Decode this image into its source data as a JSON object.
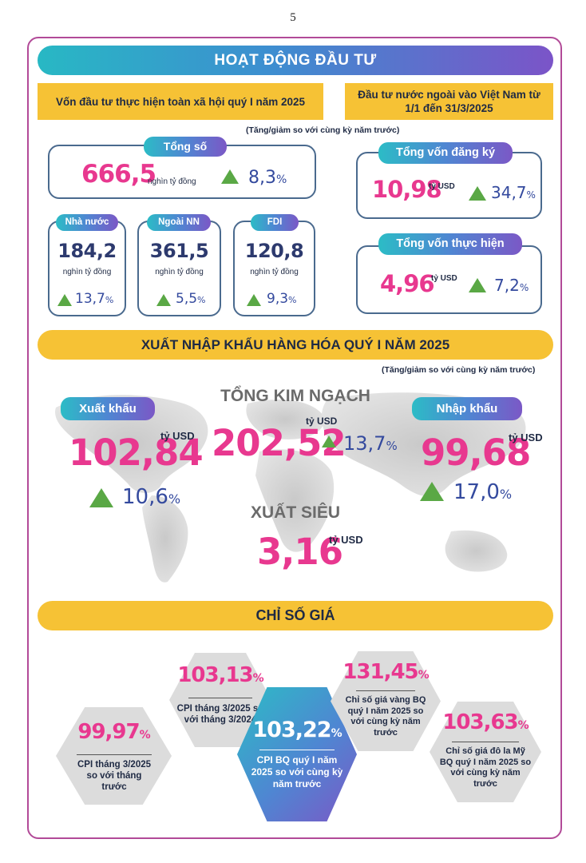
{
  "page_number": "5",
  "investment": {
    "title": "HOẠT ĐỘNG ĐẦU TƯ",
    "left_header": "Vốn đầu tư thực hiện toàn xã hội quý I năm 2025",
    "right_header": "Đầu tư nước ngoài vào Việt Nam từ 1/1 đến 31/3/2025",
    "note": "(Tăng/giảm so với cùng kỳ năm trước)",
    "total": {
      "label": "Tổng số",
      "value": "666,5",
      "unit": "nghìn tỷ đồng",
      "change": "8,3",
      "pct": "%"
    },
    "state": {
      "label": "Nhà nước",
      "value": "184,2",
      "unit": "nghìn tỷ đồng",
      "change": "13,7",
      "pct": "%"
    },
    "nonstate": {
      "label": "Ngoài NN",
      "value": "361,5",
      "unit": "nghìn tỷ đồng",
      "change": "5,5",
      "pct": "%"
    },
    "fdi": {
      "label": "FDI",
      "value": "120,8",
      "unit": "nghìn tỷ đồng",
      "change": "9,3",
      "pct": "%"
    },
    "registered": {
      "label": "Tổng vốn đăng ký",
      "value": "10,98",
      "unit": "tỷ USD",
      "change": "34,7",
      "pct": "%"
    },
    "disbursed": {
      "label": "Tổng vốn thực hiện",
      "value": "4,96",
      "unit": "tỷ USD",
      "change": "7,2",
      "pct": "%"
    }
  },
  "trade": {
    "title": "XUẤT NHẬP KHẨU HÀNG HÓA QUÝ I NĂM 2025",
    "note": "(Tăng/giảm so với cùng kỳ năm trước)",
    "export": {
      "label": "Xuất khẩu",
      "value": "102,84",
      "unit": "tỷ USD",
      "change": "10,6",
      "pct": "%"
    },
    "total": {
      "label": "TỔNG KIM NGẠCH",
      "value": "202,52",
      "unit": "tỷ USD",
      "change": "13,7",
      "pct": "%"
    },
    "import": {
      "label": "Nhập khẩu",
      "value": "99,68",
      "unit": "tỷ USD",
      "change": "17,0",
      "pct": "%"
    },
    "surplus": {
      "label": "XUẤT SIÊU",
      "value": "3,16",
      "unit": "tỷ USD"
    }
  },
  "prices": {
    "title": "CHỈ SỐ GIÁ",
    "cpi_prev_month": {
      "value": "99,97",
      "pct": "%",
      "label": "CPI tháng 3/2025 so với tháng trước"
    },
    "cpi_yoy": {
      "value": "103,13",
      "pct": "%",
      "label": "CPI tháng 3/2025 so với tháng 3/2024"
    },
    "cpi_avg": {
      "value": "103,22",
      "pct": "%",
      "label": "CPI BQ quý I năm 2025 so với cùng kỳ năm trước"
    },
    "gold": {
      "value": "131,45",
      "pct": "%",
      "label": "Chỉ số giá vàng BQ quý I năm 2025 so với cùng kỳ năm trước"
    },
    "usd": {
      "value": "103,63",
      "pct": "%",
      "label": "Chỉ số giá đô la Mỹ BQ quý I năm 2025 so với cùng kỳ năm trước"
    }
  },
  "colors": {
    "accent_pink": "#e8388f",
    "navy": "#2d3a6e",
    "yellow": "#f6c235",
    "teal": "#28b8c4",
    "purple": "#7b54c8",
    "green": "#5aa845"
  }
}
